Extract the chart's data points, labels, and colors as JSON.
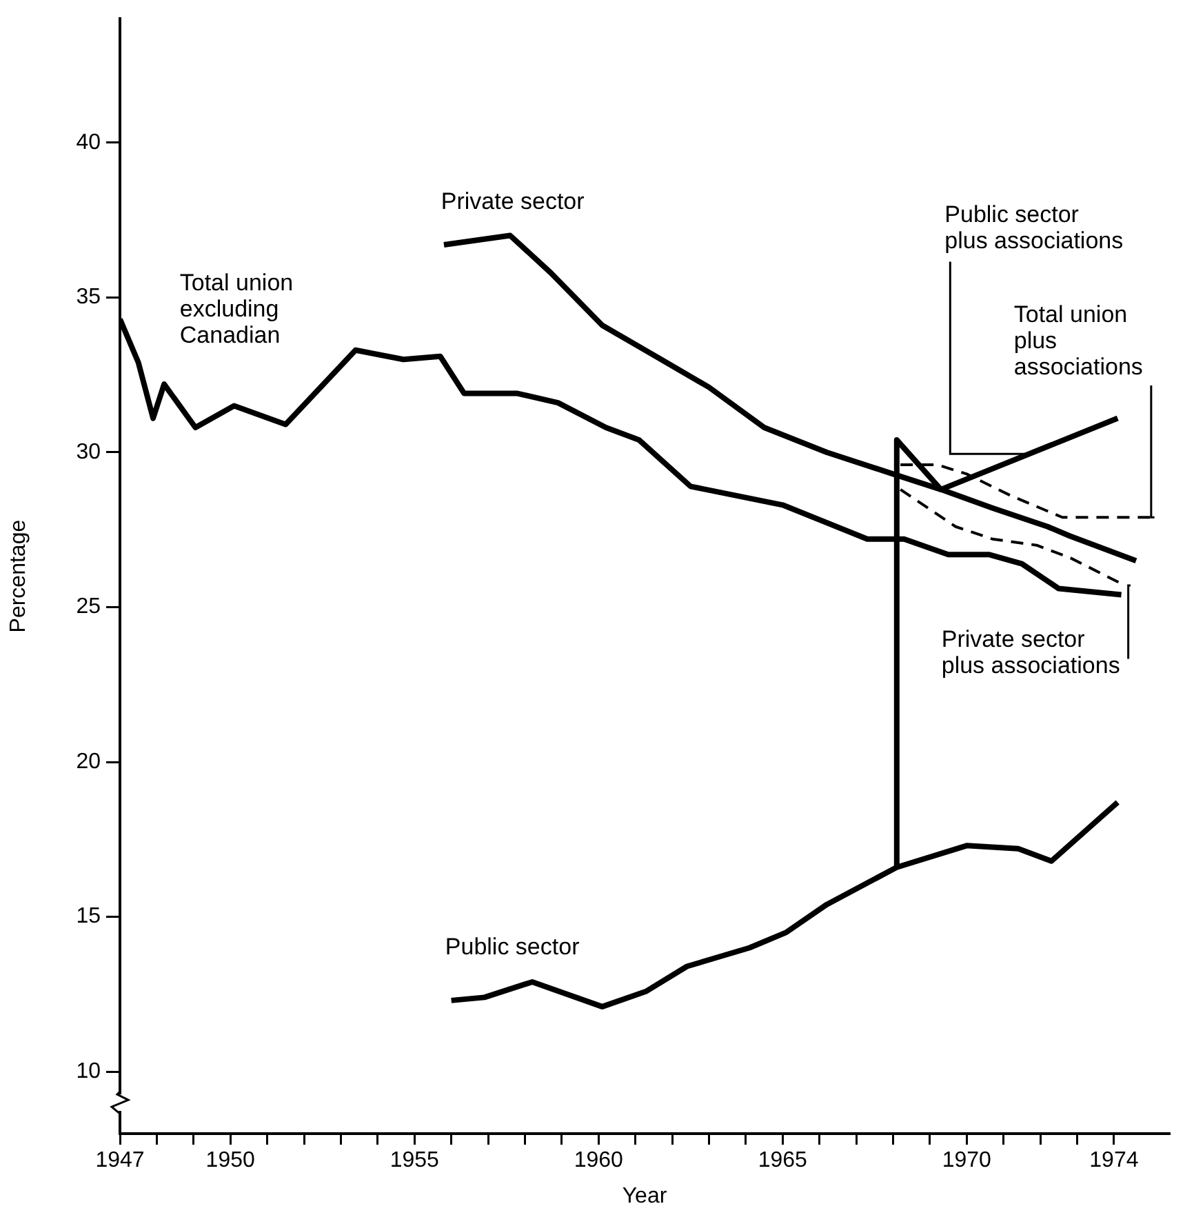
{
  "chart_data": {
    "type": "line",
    "xlabel": "Year",
    "ylabel": "Percentage",
    "xlim": [
      1947,
      1975.5
    ],
    "ylim": [
      8,
      44
    ],
    "xticks": [
      1947,
      {
        "value": 1948,
        "label": null
      },
      {
        "value": 1949,
        "label": null
      },
      1950,
      {
        "value": 1951,
        "label": null
      },
      {
        "value": 1952,
        "label": null
      },
      {
        "value": 1953,
        "label": null
      },
      {
        "value": 1954,
        "label": null
      },
      1955,
      {
        "value": 1956,
        "label": null
      },
      {
        "value": 1957,
        "label": null
      },
      {
        "value": 1958,
        "label": null
      },
      {
        "value": 1959,
        "label": null
      },
      1960,
      {
        "value": 1961,
        "label": null
      },
      {
        "value": 1962,
        "label": null
      },
      {
        "value": 1963,
        "label": null
      },
      {
        "value": 1964,
        "label": null
      },
      1965,
      {
        "value": 1966,
        "label": null
      },
      {
        "value": 1967,
        "label": null
      },
      {
        "value": 1968,
        "label": null
      },
      {
        "value": 1969,
        "label": null
      },
      1970,
      {
        "value": 1971,
        "label": null
      },
      {
        "value": 1972,
        "label": null
      },
      {
        "value": 1973,
        "label": null
      },
      1974
    ],
    "yticks": [
      10,
      15,
      20,
      25,
      30,
      35,
      40
    ],
    "grid": false,
    "legend": false,
    "marker": "none",
    "series": [
      {
        "name": "Total union excluding Canadian",
        "color": "#000000",
        "line_style": "solid",
        "x": [
          1947,
          1947.5,
          1947.9,
          1948.2,
          1949.05,
          1950.1,
          1951.5,
          1953.4,
          1954.7,
          1955.7,
          1956.35,
          1957.8,
          1958.9,
          1960.2,
          1961.1,
          1962.5,
          1965,
          1967.3,
          1968.3,
          1969.5,
          1970.6,
          1971.5,
          1972.5,
          1974.2
        ],
        "values": [
          34.3,
          32.9,
          31.1,
          32.2,
          30.8,
          31.5,
          30.9,
          33.3,
          33.0,
          33.1,
          31.9,
          31.9,
          31.6,
          30.8,
          30.4,
          28.9,
          28.3,
          27.2,
          27.2,
          26.7,
          26.7,
          26.4,
          25.6,
          25.4
        ]
      },
      {
        "name": "Private sector",
        "color": "#000000",
        "line_style": "solid",
        "x": [
          1955.8,
          1957.6,
          1958.7,
          1960.1,
          1961.7,
          1963,
          1964.5,
          1966.2,
          1968,
          1969.3,
          1970.7,
          1972.2,
          1972.8,
          1974.6
        ],
        "values": [
          36.7,
          37.0,
          35.8,
          34.1,
          33.0,
          32.1,
          30.8,
          30.0,
          29.3,
          28.8,
          28.2,
          27.6,
          27.3,
          26.5
        ]
      },
      {
        "name": "Public sector",
        "color": "#000000",
        "line_style": "solid",
        "x": [
          1956.0,
          1956.9,
          1958.2,
          1960.1,
          1961.3,
          1962.4,
          1964.1,
          1965.1,
          1966.2,
          1968.1,
          1970.0,
          1971.4,
          1972.3,
          1974.1
        ],
        "values": [
          12.3,
          12.4,
          12.9,
          12.1,
          12.6,
          13.4,
          14.0,
          14.5,
          15.4,
          16.6,
          17.3,
          17.2,
          16.8,
          18.7
        ]
      },
      {
        "name": "Public sector plus associations",
        "color": "#000000",
        "line_style": "solid",
        "x": [
          1968.1,
          1968.1,
          1969.3,
          1974.1
        ],
        "values": [
          16.6,
          30.4,
          28.8,
          31.1
        ]
      },
      {
        "name": "Total union plus associations",
        "color": "#000000",
        "line_style": "dashed",
        "x": [
          1968.2,
          1969.2,
          1970,
          1971.2,
          1972.6,
          1975.1
        ],
        "values": [
          29.6,
          29.6,
          29.3,
          28.6,
          27.9,
          27.9
        ]
      },
      {
        "name": "Private sector plus associations",
        "color": "#000000",
        "line_style": "dashed",
        "x": [
          1968.2,
          1969.7,
          1970.7,
          1971.9,
          1972.8,
          1974.3
        ],
        "values": [
          28.8,
          27.6,
          27.2,
          27.0,
          26.6,
          25.7
        ]
      }
    ]
  }
}
